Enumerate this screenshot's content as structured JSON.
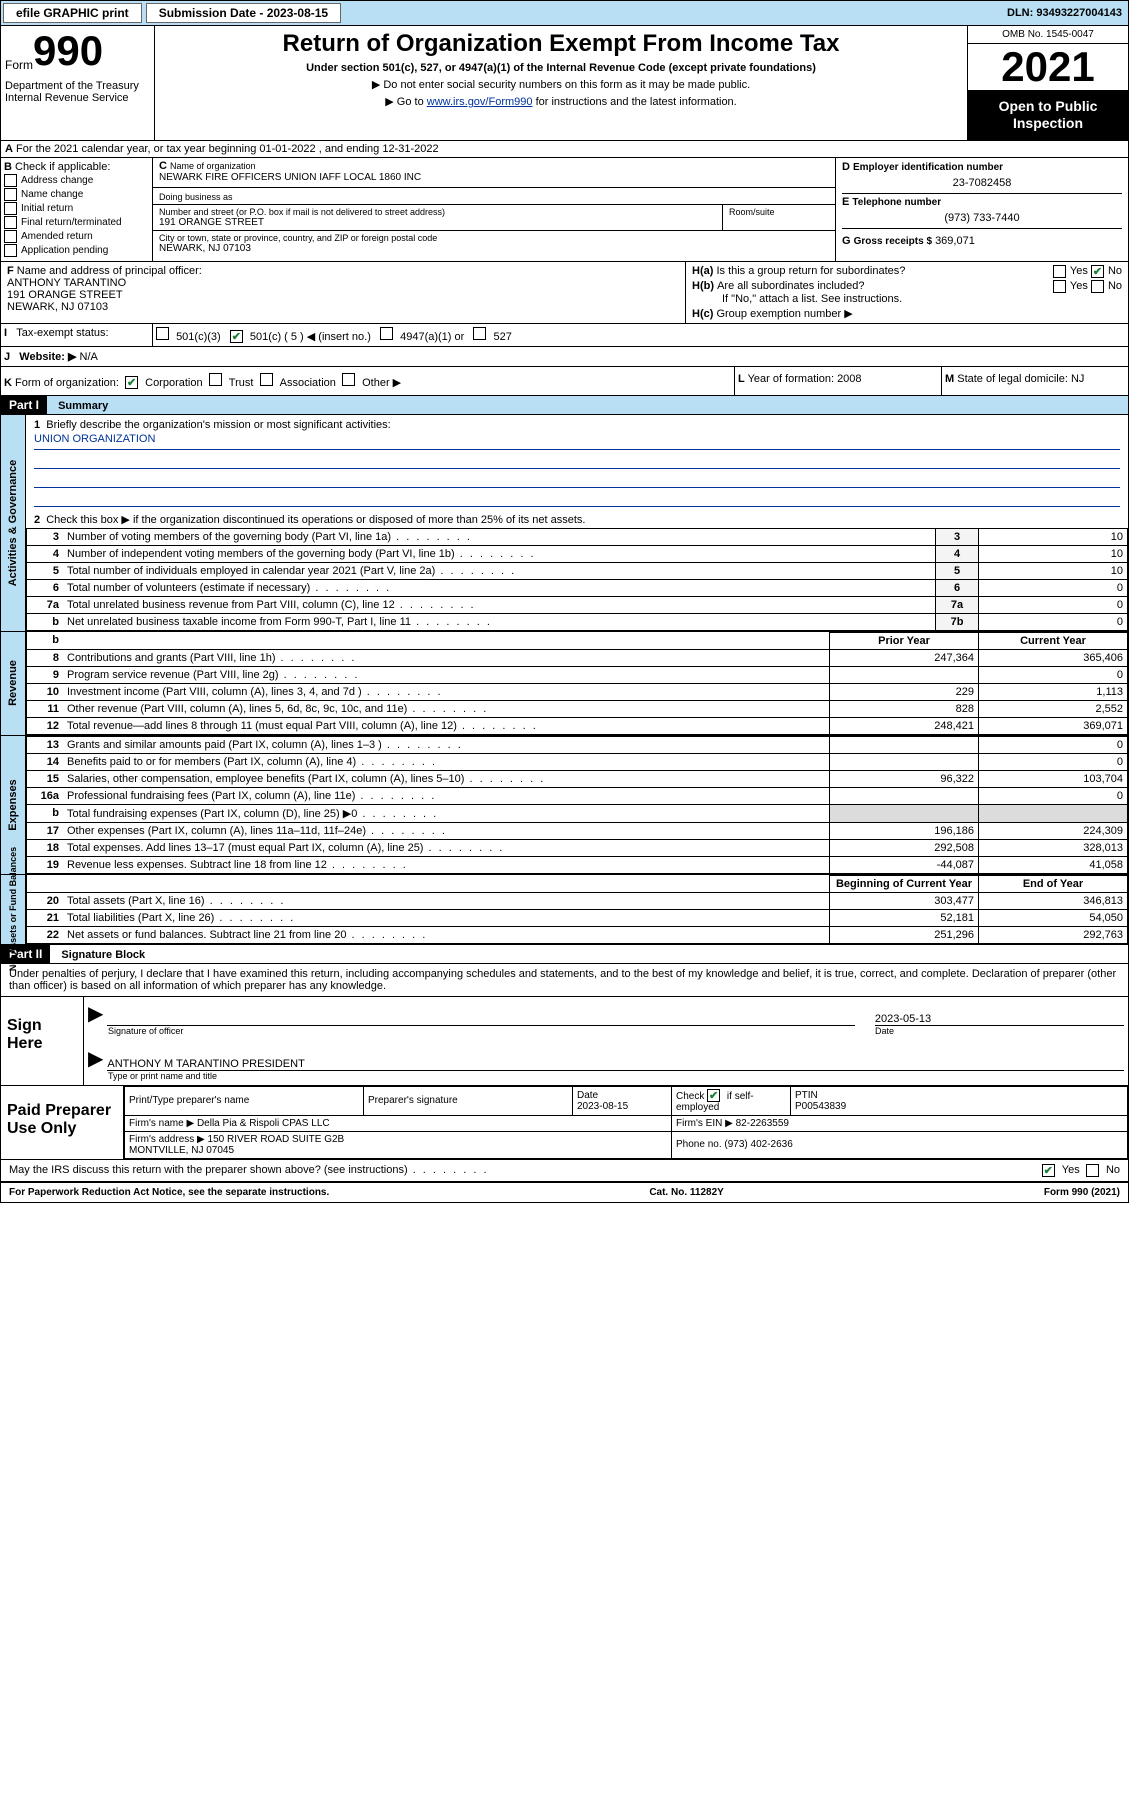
{
  "topbar": {
    "efile": "efile GRAPHIC print",
    "submission_label": "Submission Date - 2023-08-15",
    "dln_label": "DLN: 93493227004143"
  },
  "header": {
    "form_label": "Form",
    "form_num": "990",
    "title": "Return of Organization Exempt From Income Tax",
    "subtitle": "Under section 501(c), 527, or 4947(a)(1) of the Internal Revenue Code (except private foundations)",
    "note1": "▶ Do not enter social security numbers on this form as it may be made public.",
    "note2_pre": "▶ Go to ",
    "note2_link": "www.irs.gov/Form990",
    "note2_post": " for instructions and the latest information.",
    "dept": "Department of the Treasury\nInternal Revenue Service",
    "omb": "OMB No. 1545-0047",
    "year": "2021",
    "otp": "Open to Public Inspection"
  },
  "sectionA": {
    "taxyear": "For the 2021 calendar year, or tax year beginning 01-01-2022   , and ending 12-31-2022"
  },
  "sectionB": {
    "header": "Check if applicable:",
    "items": [
      {
        "label": "Address change",
        "checked": false
      },
      {
        "label": "Name change",
        "checked": false
      },
      {
        "label": "Initial return",
        "checked": false
      },
      {
        "label": "Final return/terminated",
        "checked": false
      },
      {
        "label": "Amended return",
        "checked": false
      },
      {
        "label": "Application pending",
        "checked": false
      }
    ]
  },
  "sectionC": {
    "name_label": "Name of organization",
    "name": "NEWARK FIRE OFFICERS UNION IAFF LOCAL 1860 INC",
    "dba_label": "Doing business as",
    "dba": "",
    "street_label": "Number and street (or P.O. box if mail is not delivered to street address)",
    "street": "191 ORANGE STREET",
    "room_label": "Room/suite",
    "room": "",
    "city_label": "City or town, state or province, country, and ZIP or foreign postal code",
    "city": "NEWARK, NJ  07103"
  },
  "sectionD": {
    "label": "Employer identification number",
    "value": "23-7082458"
  },
  "sectionE": {
    "label": "Telephone number",
    "value": "(973) 733-7440"
  },
  "sectionG": {
    "label": "Gross receipts $",
    "value": "369,071"
  },
  "sectionF": {
    "label": "Name and address of principal officer:",
    "name": "ANTHONY TARANTINO",
    "street": "191 ORANGE STREET",
    "city": "NEWARK, NJ  07103"
  },
  "sectionH": {
    "a_label": "Is this a group return for subordinates?",
    "a_yes": "Yes",
    "a_no": "No",
    "a_checked": "No",
    "b_label": "Are all subordinates included?",
    "b_yes": "Yes",
    "b_no": "No",
    "b_note": "If \"No,\" attach a list. See instructions.",
    "c_label": "Group exemption number ▶",
    "c_value": ""
  },
  "sectionI": {
    "label": "Tax-exempt status:",
    "opts": [
      {
        "label": "501(c)(3)",
        "checked": false
      },
      {
        "label": "501(c) ( 5 ) ◀ (insert no.)",
        "checked": true
      },
      {
        "label": "4947(a)(1) or",
        "checked": false
      },
      {
        "label": "527",
        "checked": false
      }
    ]
  },
  "sectionJ": {
    "label": "Website: ▶",
    "value": "N/A"
  },
  "sectionK": {
    "label": "Form of organization:",
    "opts": [
      {
        "label": "Corporation",
        "checked": true
      },
      {
        "label": "Trust",
        "checked": false
      },
      {
        "label": "Association",
        "checked": false
      },
      {
        "label": "Other ▶",
        "checked": false
      }
    ]
  },
  "sectionL": {
    "label": "Year of formation:",
    "value": "2008"
  },
  "sectionM": {
    "label": "State of legal domicile:",
    "value": "NJ"
  },
  "partI": {
    "header": "Part I",
    "title": "Summary",
    "mission_label": "Briefly describe the organization's mission or most significant activities:",
    "mission": "UNION ORGANIZATION",
    "line2": "Check this box ▶         if the organization discontinued its operations or disposed of more than 25% of its net assets.",
    "groups": [
      {
        "side": "Activities & Governance",
        "rows": [
          {
            "n": "3",
            "desc": "Number of voting members of the governing body (Part VI, line 1a)",
            "box": "3",
            "val": "10"
          },
          {
            "n": "4",
            "desc": "Number of independent voting members of the governing body (Part VI, line 1b)",
            "box": "4",
            "val": "10"
          },
          {
            "n": "5",
            "desc": "Total number of individuals employed in calendar year 2021 (Part V, line 2a)",
            "box": "5",
            "val": "10"
          },
          {
            "n": "6",
            "desc": "Total number of volunteers (estimate if necessary)",
            "box": "6",
            "val": "0"
          },
          {
            "n": "7a",
            "desc": "Total unrelated business revenue from Part VIII, column (C), line 12",
            "box": "7a",
            "val": "0"
          },
          {
            "n": "b",
            "desc": "Net unrelated business taxable income from Form 990-T, Part I, line 11",
            "box": "7b",
            "val": "0"
          }
        ]
      }
    ],
    "pycy_header": {
      "prior": "Prior Year",
      "current": "Current Year"
    },
    "revenue": {
      "side": "Revenue",
      "rows": [
        {
          "n": "8",
          "desc": "Contributions and grants (Part VIII, line 1h)",
          "prior": "247,364",
          "curr": "365,406"
        },
        {
          "n": "9",
          "desc": "Program service revenue (Part VIII, line 2g)",
          "prior": "",
          "curr": "0"
        },
        {
          "n": "10",
          "desc": "Investment income (Part VIII, column (A), lines 3, 4, and 7d )",
          "prior": "229",
          "curr": "1,113"
        },
        {
          "n": "11",
          "desc": "Other revenue (Part VIII, column (A), lines 5, 6d, 8c, 9c, 10c, and 11e)",
          "prior": "828",
          "curr": "2,552"
        },
        {
          "n": "12",
          "desc": "Total revenue—add lines 8 through 11 (must equal Part VIII, column (A), line 12)",
          "prior": "248,421",
          "curr": "369,071"
        }
      ]
    },
    "expenses": {
      "side": "Expenses",
      "rows": [
        {
          "n": "13",
          "desc": "Grants and similar amounts paid (Part IX, column (A), lines 1–3 )",
          "prior": "",
          "curr": "0"
        },
        {
          "n": "14",
          "desc": "Benefits paid to or for members (Part IX, column (A), line 4)",
          "prior": "",
          "curr": "0"
        },
        {
          "n": "15",
          "desc": "Salaries, other compensation, employee benefits (Part IX, column (A), lines 5–10)",
          "prior": "96,322",
          "curr": "103,704"
        },
        {
          "n": "16a",
          "desc": "Professional fundraising fees (Part IX, column (A), line 11e)",
          "prior": "",
          "curr": "0"
        },
        {
          "n": "b",
          "desc": "Total fundraising expenses (Part IX, column (D), line 25) ▶0",
          "prior": "shade",
          "curr": "shade"
        },
        {
          "n": "17",
          "desc": "Other expenses (Part IX, column (A), lines 11a–11d, 11f–24e)",
          "prior": "196,186",
          "curr": "224,309"
        },
        {
          "n": "18",
          "desc": "Total expenses. Add lines 13–17 (must equal Part IX, column (A), line 25)",
          "prior": "292,508",
          "curr": "328,013"
        },
        {
          "n": "19",
          "desc": "Revenue less expenses. Subtract line 18 from line 12",
          "prior": "-44,087",
          "curr": "41,058"
        }
      ]
    },
    "netassets_header": {
      "prior": "Beginning of Current Year",
      "current": "End of Year"
    },
    "netassets": {
      "side": "Net Assets or Fund Balances",
      "rows": [
        {
          "n": "20",
          "desc": "Total assets (Part X, line 16)",
          "prior": "303,477",
          "curr": "346,813"
        },
        {
          "n": "21",
          "desc": "Total liabilities (Part X, line 26)",
          "prior": "52,181",
          "curr": "54,050"
        },
        {
          "n": "22",
          "desc": "Net assets or fund balances. Subtract line 21 from line 20",
          "prior": "251,296",
          "curr": "292,763"
        }
      ]
    }
  },
  "partII": {
    "header": "Part II",
    "title": "Signature Block",
    "declaration": "Under penalties of perjury, I declare that I have examined this return, including accompanying schedules and statements, and to the best of my knowledge and belief, it is true, correct, and complete. Declaration of preparer (other than officer) is based on all information of which preparer has any knowledge."
  },
  "sign": {
    "left": "Sign Here",
    "sig_label": "Signature of officer",
    "date_label": "Date",
    "date": "2023-05-13",
    "name_label": "Type or print name and title",
    "name": "ANTHONY M TARANTINO  PRESIDENT"
  },
  "preparer": {
    "left": "Paid Preparer Use Only",
    "cols": {
      "name_label": "Print/Type preparer's name",
      "sig_label": "Preparer's signature",
      "date_label": "Date",
      "date": "2023-08-15",
      "check_label": "Check",
      "self_employed": "if self-employed",
      "ptin_label": "PTIN",
      "ptin": "P00543839"
    },
    "firm_name_label": "Firm's name      ▶",
    "firm_name": "Della Pia & Rispoli CPAS LLC",
    "firm_ein_label": "Firm's EIN ▶",
    "firm_ein": "82-2263559",
    "firm_addr_label": "Firm's address ▶",
    "firm_addr": "150 RIVER ROAD SUITE G2B\nMONTVILLE, NJ  07045",
    "phone_label": "Phone no.",
    "phone": "(973) 402-2636"
  },
  "discuss": {
    "q": "May the IRS discuss this return with the preparer shown above? (see instructions)",
    "yes": "Yes",
    "no": "No",
    "checked": "Yes"
  },
  "footer": {
    "left": "For Paperwork Reduction Act Notice, see the separate instructions.",
    "center": "Cat. No. 11282Y",
    "right": "Form 990 (2021)"
  },
  "colors": {
    "topbar_bg": "#b8dff3",
    "link": "#003399",
    "check_green": "#1a7f37"
  }
}
